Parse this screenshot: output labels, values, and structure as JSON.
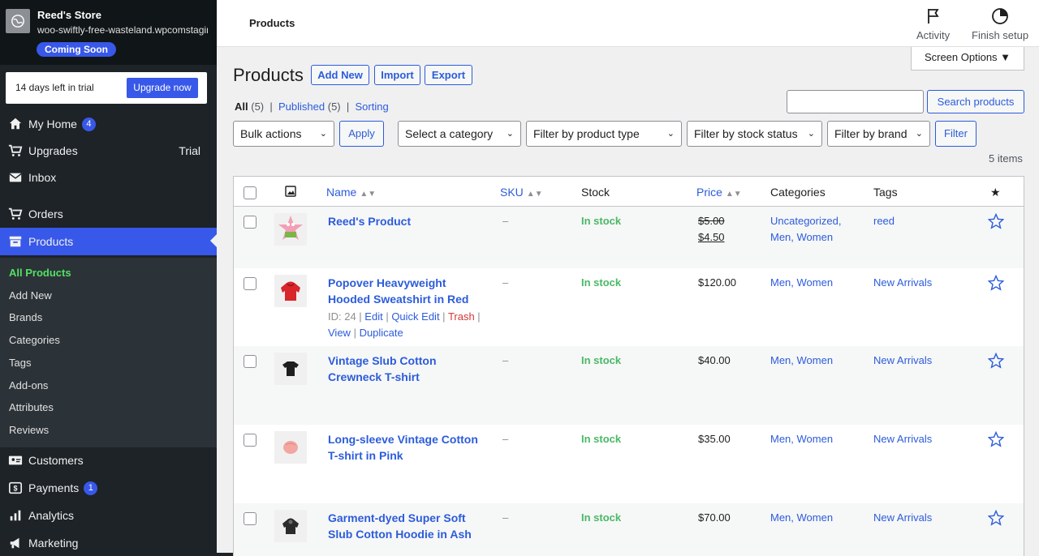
{
  "site": {
    "name": "Reed's Store",
    "url": "woo-swiftly-free-wasteland.wpcomstaging.com",
    "status_badge": "Coming Soon"
  },
  "trial": {
    "text": "14 days left in trial",
    "upgrade_label": "Upgrade now"
  },
  "menu": {
    "my_home": "My Home",
    "my_home_badge": "4",
    "upgrades": "Upgrades",
    "upgrades_tag": "Trial",
    "inbox": "Inbox",
    "orders": "Orders",
    "products": "Products",
    "customers": "Customers",
    "payments": "Payments",
    "payments_badge": "1",
    "analytics": "Analytics",
    "marketing": "Marketing"
  },
  "submenu": [
    "All Products",
    "Add New",
    "Brands",
    "Categories",
    "Tags",
    "Add-ons",
    "Attributes",
    "Reviews"
  ],
  "topbar": {
    "title": "Products",
    "activity": "Activity",
    "finish_setup": "Finish setup"
  },
  "screen_options": "Screen Options ▼",
  "page": {
    "heading": "Products",
    "add_new": "Add New",
    "import": "Import",
    "export": "Export"
  },
  "views": {
    "all": "All",
    "all_count": "(5)",
    "published": "Published",
    "published_count": "(5)",
    "sorting": "Sorting"
  },
  "search": {
    "placeholder": "",
    "button": "Search products"
  },
  "filters": {
    "bulk_actions": "Bulk actions",
    "apply": "Apply",
    "category": "Select a category",
    "product_type": "Filter by product type",
    "stock_status": "Filter by stock status",
    "brand": "Filter by brand",
    "filter": "Filter"
  },
  "items_count": "5 items",
  "columns": {
    "name": "Name",
    "sku": "SKU",
    "stock": "Stock",
    "price": "Price",
    "categories": "Categories",
    "tags": "Tags"
  },
  "products": [
    {
      "name": "Reed's Product",
      "sku": "–",
      "stock": "In stock",
      "price_old": "$5.00",
      "price_new": "$4.50",
      "categories": "Uncategorized, Men, Women",
      "tags": "reed"
    },
    {
      "name": "Popover Heavyweight Hooded Sweatshirt in Red",
      "sku": "–",
      "stock": "In stock",
      "price": "$120.00",
      "categories": "Men, Women",
      "tags": "New Arrivals",
      "row_actions": {
        "id": "ID: 24",
        "edit": "Edit",
        "quick_edit": "Quick Edit",
        "trash": "Trash",
        "view": "View",
        "duplicate": "Duplicate"
      }
    },
    {
      "name": "Vintage Slub Cotton Crewneck T-shirt",
      "sku": "–",
      "stock": "In stock",
      "price": "$40.00",
      "categories": "Men, Women",
      "tags": "New Arrivals"
    },
    {
      "name": "Long-sleeve Vintage Cotton T-shirt in Pink",
      "sku": "–",
      "stock": "In stock",
      "price": "$35.00",
      "categories": "Men, Women",
      "tags": "New Arrivals"
    },
    {
      "name": "Garment-dyed Super Soft Slub Cotton Hoodie in Ash",
      "sku": "–",
      "stock": "In stock",
      "price": "$70.00",
      "categories": "Men, Women",
      "tags": "New Arrivals"
    }
  ],
  "colors": {
    "accent": "#3858e9",
    "link": "#2c5cdb",
    "in_stock": "#4ab866",
    "sidebar_bg": "#1d2327",
    "current_submenu": "#54e064"
  }
}
